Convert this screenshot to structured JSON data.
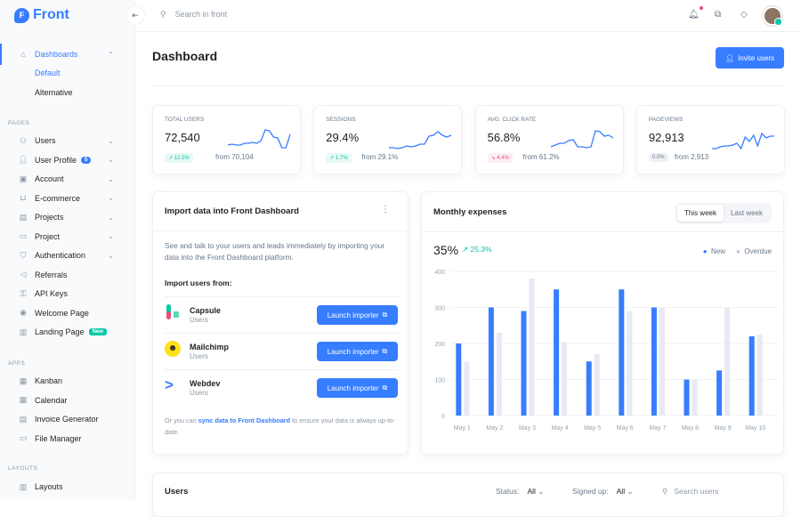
{
  "brand": {
    "name": "Front",
    "mark": "F"
  },
  "sidebar": {
    "dashboards": "Dashboards",
    "sub": [
      "Default",
      "Alternative"
    ],
    "sections": {
      "pages": "PAGES",
      "apps": "APPS",
      "layouts": "LAYOUTS"
    },
    "pages": [
      {
        "label": "Users",
        "icon": "users-icon",
        "chev": true
      },
      {
        "label": "User Profile",
        "icon": "user-icon",
        "chev": true,
        "badge": "5"
      },
      {
        "label": "Account",
        "icon": "person-badge-icon",
        "chev": true
      },
      {
        "label": "E-commerce",
        "icon": "basket-icon",
        "chev": true
      },
      {
        "label": "Projects",
        "icon": "stickies-icon",
        "chev": true
      },
      {
        "label": "Project",
        "icon": "briefcase-icon",
        "chev": true
      },
      {
        "label": "Authentication",
        "icon": "shield-icon",
        "chev": true
      },
      {
        "label": "Referrals",
        "icon": "megaphone-icon"
      },
      {
        "label": "API Keys",
        "icon": "key-icon"
      },
      {
        "label": "Welcome Page",
        "icon": "eye-icon"
      },
      {
        "label": "Landing Page",
        "icon": "book-icon",
        "new": "New"
      }
    ],
    "apps": [
      {
        "label": "Kanban",
        "icon": "kanban-icon"
      },
      {
        "label": "Calendar",
        "icon": "calendar-icon"
      },
      {
        "label": "Invoice Generator",
        "icon": "receipt-icon"
      },
      {
        "label": "File Manager",
        "icon": "folder-icon"
      }
    ],
    "layouts": [
      {
        "label": "Layouts",
        "icon": "layout-icon"
      }
    ]
  },
  "topbar": {
    "search_placeholder": "Search in front",
    "notification_color": "#ed4c78"
  },
  "page": {
    "title": "Dashboard",
    "invite": "Invite users"
  },
  "stats": [
    {
      "label": "TOTAL USERS",
      "value": "72,540",
      "change": "12.5%",
      "trend": "up",
      "from": "from 70,104",
      "spark": [
        18,
        19,
        18,
        18,
        20,
        20,
        21,
        20,
        23,
        35,
        34,
        27,
        26,
        15,
        15,
        30
      ]
    },
    {
      "label": "SESSIONS",
      "value": "29.4%",
      "change": "1.7%",
      "trend": "up",
      "from": "from 29.1%",
      "spark": [
        15,
        15,
        14,
        15,
        17,
        16,
        17,
        19,
        19,
        28,
        29,
        33,
        29,
        27,
        29
      ]
    },
    {
      "label": "AVG. CLICK RATE",
      "value": "56.8%",
      "change": "4.4%",
      "trend": "down",
      "from": "from 61.2%",
      "spark": [
        16,
        18,
        20,
        20,
        23,
        24,
        16,
        16,
        15,
        16,
        34,
        33,
        28,
        29,
        26
      ]
    },
    {
      "label": "PAGEVIEWS",
      "value": "92,913",
      "change": "0.0%",
      "trend": "neutral",
      "from": "from 2,913",
      "spark": [
        14,
        14,
        16,
        17,
        17,
        18,
        20,
        14,
        27,
        22,
        29,
        17,
        31,
        26,
        28,
        28
      ]
    }
  ],
  "import": {
    "title": "Import data into Front Dashboard",
    "desc": "See and talk to your users and leads immediately by importing your data into the Front Dashboard platform.",
    "from_label": "Import users from:",
    "items": [
      {
        "name": "Capsule",
        "sub": "Users",
        "button": "Launch importer"
      },
      {
        "name": "Mailchimp",
        "sub": "Users",
        "button": "Launch importer"
      },
      {
        "name": "Webdev",
        "sub": "Users",
        "button": "Launch importer"
      }
    ],
    "foot_pre": "Or you can ",
    "foot_link": "sync data to Front Dashboard",
    "foot_post": " to ensure your data is always up-to-date."
  },
  "expenses": {
    "title": "Monthly expenses",
    "tabs": [
      "This week",
      "Last week"
    ],
    "active_tab": "This week",
    "value": "35%",
    "change": "25.3%"
  },
  "chart_data": {
    "type": "bar",
    "categories": [
      "May 1",
      "May 2",
      "May 3",
      "May 4",
      "May 5",
      "May 6",
      "May 7",
      "May 8",
      "May 9",
      "May 10"
    ],
    "series": [
      {
        "name": "New",
        "color": "#377dff",
        "values": [
          200,
          300,
          290,
          350,
          150,
          350,
          300,
          100,
          125,
          220
        ]
      },
      {
        "name": "Overdue",
        "color": "#e7eaf3",
        "values": [
          150,
          230,
          380,
          205,
          170,
          290,
          300,
          100,
          300,
          225
        ]
      }
    ],
    "ylim": [
      0,
      400
    ],
    "yticks": [
      0,
      100,
      200,
      300,
      400
    ],
    "grid": true,
    "legend": "top-right"
  },
  "users": {
    "title": "Users",
    "status_label": "Status:",
    "status_value": "All",
    "signed_label": "Signed up:",
    "signed_value": "All",
    "search_placeholder": "Search users"
  }
}
